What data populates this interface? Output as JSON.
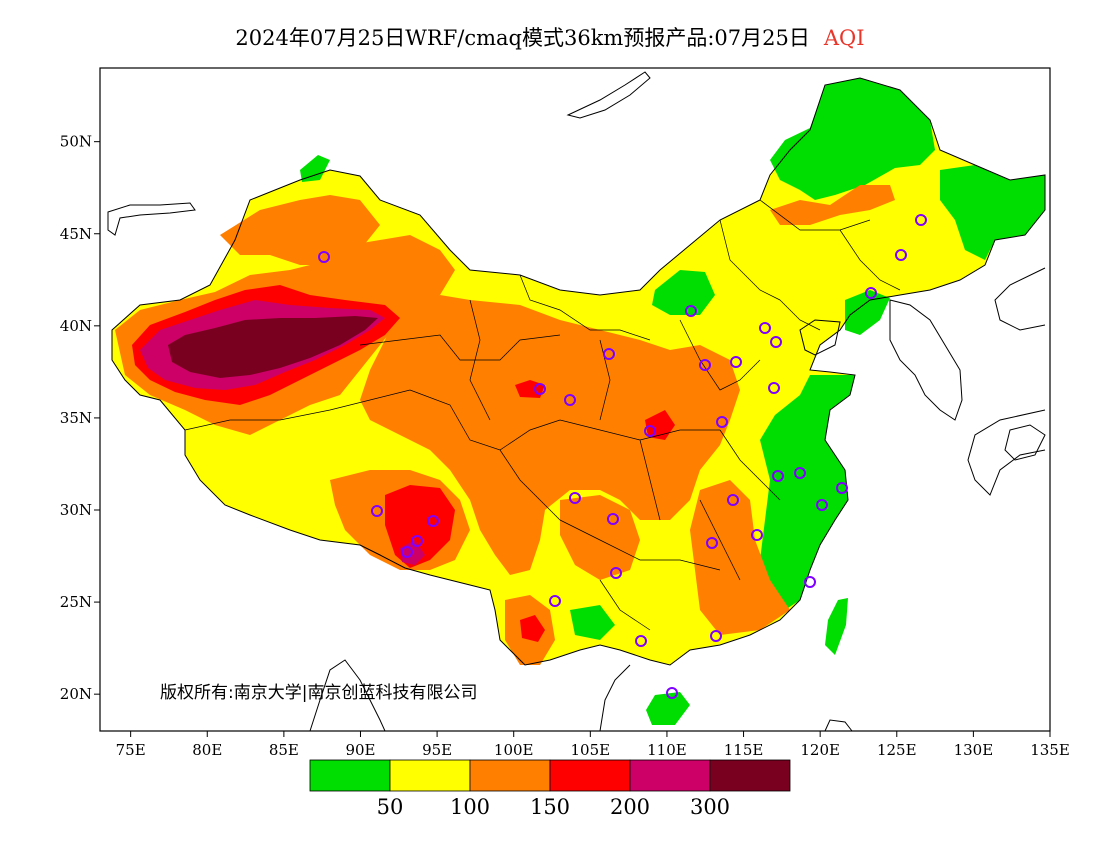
{
  "title": {
    "main": "2024年07月25日WRF/cmaq模式36km预报产品:07月25日",
    "variable": "AQI"
  },
  "copyright": "版权所有:南京大学|南京创蓝科技有限公司",
  "axes": {
    "lat_labels": [
      "50N",
      "45N",
      "40N",
      "35N",
      "30N",
      "25N",
      "20N"
    ],
    "lat_values": [
      50,
      45,
      40,
      35,
      30,
      25,
      20
    ],
    "lon_labels": [
      "75E",
      "80E",
      "85E",
      "90E",
      "95E",
      "100E",
      "105E",
      "110E",
      "115E",
      "120E",
      "125E",
      "130E",
      "135E"
    ],
    "lon_values": [
      75,
      80,
      85,
      90,
      95,
      100,
      105,
      110,
      115,
      120,
      125,
      130,
      135
    ],
    "lon_range": [
      73,
      135
    ],
    "lat_range": [
      18,
      54
    ]
  },
  "colorbar": {
    "colors": [
      "#00dd00",
      "#ffff00",
      "#ff7f00",
      "#ff0000",
      "#cc0066",
      "#7a0020"
    ],
    "labels": [
      "50",
      "100",
      "150",
      "200",
      "300"
    ]
  },
  "aqi_colors": {
    "good": "#00dd00",
    "moderate": "#ffff00",
    "sensitive": "#ff7f00",
    "unhealthy": "#ff0000",
    "very_unhealthy": "#cc0066",
    "hazardous": "#7a0020"
  },
  "station_color": "#7f00ff"
}
